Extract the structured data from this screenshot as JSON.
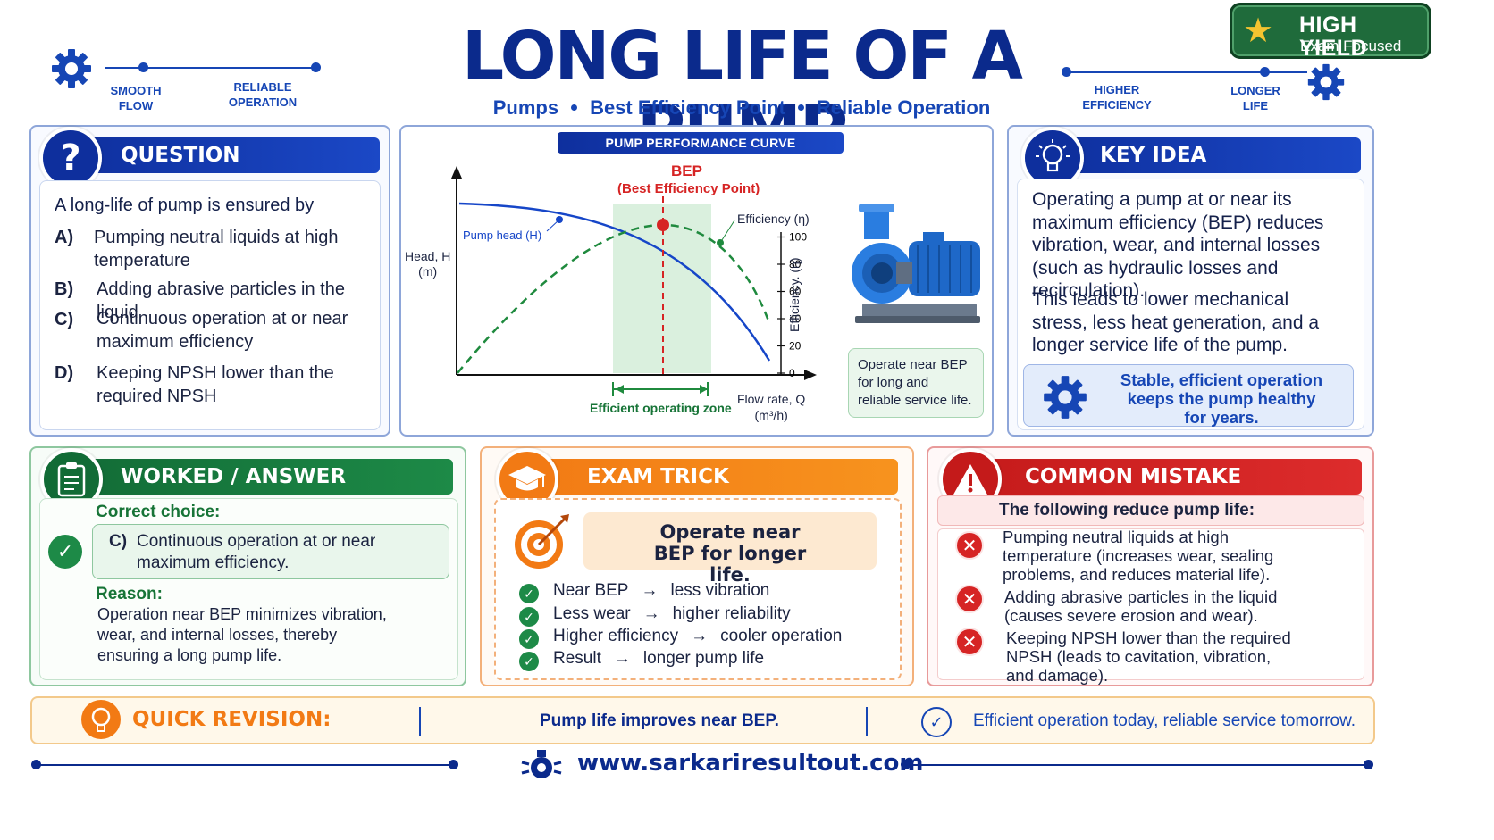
{
  "header": {
    "title": "LONG LIFE OF A PUMP",
    "subtitle_items": [
      "Pumps",
      "Best Efficiency Point",
      "Reliable Operation"
    ],
    "left_labels": [
      "SMOOTH\nFLOW",
      "RELIABLE\nOPERATION"
    ],
    "right_labels": [
      "HIGHER\nEFFICIENCY",
      "LONGER\nLIFE"
    ],
    "badge_line1": "HIGH YIELD",
    "badge_line2": "Exam Focused",
    "icons": [
      "gear-icon",
      "star-icon"
    ]
  },
  "question": {
    "heading": "QUESTION",
    "icon": "question-mark-icon",
    "prompt": "A long-life of pump is ensured by",
    "options": [
      {
        "letter": "A)",
        "text": "Pumping neutral liquids at high temperature"
      },
      {
        "letter": "B)",
        "text": "Adding abrasive particles in the liquid"
      },
      {
        "letter": "C)",
        "text": "Continuous operation at or near maximum efficiency"
      },
      {
        "letter": "D)",
        "text": "Keeping NPSH lower than the required NPSH"
      }
    ]
  },
  "chart": {
    "tag": "PUMP PERFORMANCE CURVE",
    "bep_title": "BEP",
    "bep_sub": "(Best Efficiency Point)",
    "y_label": "Head, H\n(m)",
    "x_label": "Flow rate, Q\n(m³/h)",
    "eff_axis_label": "Efficiency. (η)",
    "zone_label": "Efficient operating zone",
    "side_note": "Operate near BEP for long and reliable service life.",
    "pump_image_icon": "centrifugal-pump-icon"
  },
  "chart_data": {
    "type": "line",
    "title": "PUMP PERFORMANCE CURVE",
    "xlabel": "Flow rate, Q (m³/h)",
    "ylabel": "Head, H (m)",
    "y2label": "Efficiency. (η)",
    "y2_ticks": [
      "0",
      "20",
      "40",
      "60",
      "80",
      "100"
    ],
    "series": [
      {
        "name": "Pump head (H)",
        "color": "#1646c8",
        "style": "solid"
      },
      {
        "name": "Efficiency (η)",
        "color": "#1f8a3e",
        "style": "dashed"
      }
    ],
    "annotations": [
      "BEP",
      "(Best Efficiency Point)",
      "Efficient operating zone"
    ],
    "grid": false
  },
  "key_idea": {
    "heading": "KEY IDEA",
    "icon": "lightbulb-icon",
    "para1": "Operating a pump at or near its maximum efficiency (BEP) reduces vibration, wear, and internal losses (such as hydraulic losses and recirculation).",
    "para2": "This leads to lower mechanical stress, less heat generation, and a longer service life of the pump.",
    "highlight": "Stable, efficient operation keeps the pump healthy for years."
  },
  "worked": {
    "heading": "WORKED / ANSWER",
    "icon": "clipboard-icon",
    "correct_label": "Correct choice:",
    "answer_letter": "C)",
    "answer_text": "Continuous operation at or near maximum efficiency.",
    "reason_label": "Reason:",
    "reason_text": "Operation near BEP minimizes vibration, wear, and internal losses, thereby ensuring a long pump life."
  },
  "exam_trick": {
    "heading": "EXAM TRICK",
    "icon": "graduation-cap-icon",
    "tip": "Operate near BEP for longer life.",
    "rows": [
      {
        "left": "Near BEP",
        "right": "less vibration"
      },
      {
        "left": "Less wear",
        "right": "higher reliability"
      },
      {
        "left": "Higher efficiency",
        "right": "cooler operation"
      },
      {
        "left": "Result",
        "right": "longer pump life"
      }
    ],
    "arrow": "→"
  },
  "mistake": {
    "heading": "COMMON MISTAKE",
    "icon": "warning-icon",
    "lead": "The following reduce pump life:",
    "items": [
      "Pumping neutral liquids at high temperature (increases wear, sealing problems, and reduces material life).",
      "Adding abrasive particles in the liquid (causes severe erosion and wear).",
      "Keeping NPSH lower than the required NPSH (leads to cavitation, vibration, and damage)."
    ]
  },
  "revision": {
    "label": "QUICK REVISION:",
    "middle": "Pump life improves near BEP.",
    "right": "Efficient operation today, reliable service tomorrow."
  },
  "footer": {
    "url": "www.sarkariresultout.com"
  },
  "colors": {
    "navy": "#0b2a8c",
    "blue": "#1646b5",
    "green": "#1d8a47",
    "orange": "#f27a14",
    "red": "#d62424"
  }
}
